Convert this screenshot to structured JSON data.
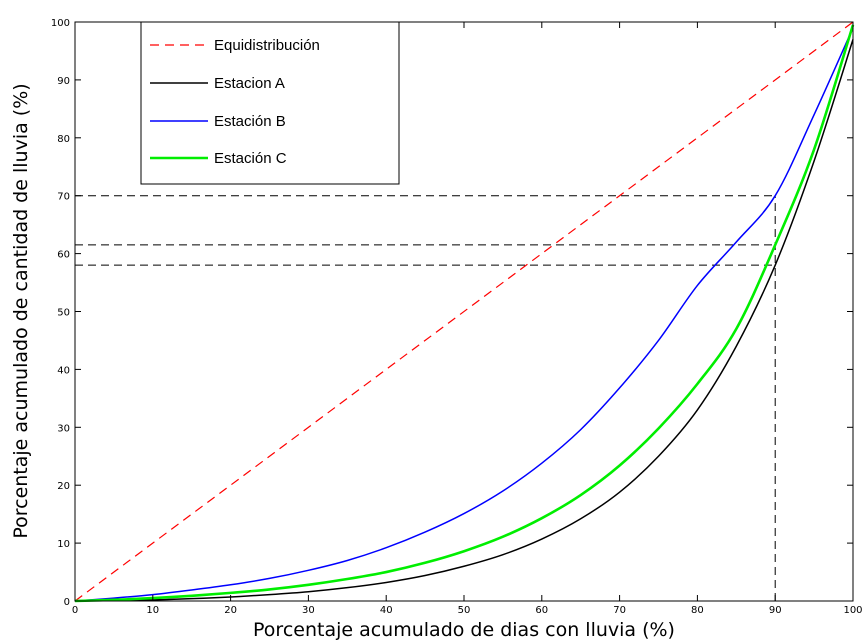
{
  "chart_data": {
    "type": "line",
    "title": "",
    "xlabel": "Porcentaje acumulado de dias con lluvia (%)",
    "ylabel": "Porcentaje acumulado de cantidad de lluvia (%)",
    "xlim": [
      0,
      100
    ],
    "ylim": [
      0,
      100
    ],
    "xticks": [
      0,
      10,
      20,
      30,
      40,
      50,
      60,
      70,
      80,
      90,
      100
    ],
    "yticks": [
      0,
      10,
      20,
      30,
      40,
      50,
      60,
      70,
      80,
      90,
      100
    ],
    "grid": false,
    "legend_position": "top-left",
    "x": [
      0,
      5,
      10,
      15,
      20,
      25,
      30,
      35,
      40,
      45,
      50,
      55,
      60,
      65,
      70,
      75,
      80,
      85,
      90,
      95,
      100
    ],
    "series": [
      {
        "name": "Equidistribución",
        "color": "#ff0000",
        "style": "dashed",
        "values": [
          0,
          5,
          10,
          15,
          20,
          25,
          30,
          35,
          40,
          45,
          50,
          55,
          60,
          65,
          70,
          75,
          80,
          85,
          90,
          95,
          100
        ]
      },
      {
        "name": "Estacion A",
        "color": "#000000",
        "style": "solid",
        "values": [
          0,
          0.1,
          0.2,
          0.4,
          0.7,
          1.1,
          1.6,
          2.3,
          3.2,
          4.4,
          6.0,
          8.0,
          10.7,
          14.2,
          18.8,
          25.0,
          33.0,
          44.0,
          58.0,
          76.0,
          97.0
        ]
      },
      {
        "name": "Estación B",
        "color": "#0000ff",
        "style": "solid",
        "values": [
          0,
          0.5,
          1.1,
          1.9,
          2.8,
          3.9,
          5.3,
          7.0,
          9.2,
          11.9,
          15.1,
          19.0,
          23.8,
          29.6,
          36.8,
          45.0,
          54.5,
          62.0,
          70.0,
          84.0,
          99.0
        ]
      },
      {
        "name": "Estación C",
        "color": "#00ee00",
        "style": "solid",
        "values": [
          0,
          0.2,
          0.5,
          0.9,
          1.4,
          2.0,
          2.8,
          3.8,
          5.0,
          6.6,
          8.6,
          11.1,
          14.3,
          18.3,
          23.4,
          29.8,
          37.5,
          47.0,
          61.5,
          78.0,
          99.5
        ]
      }
    ],
    "reference_lines": [
      {
        "orientation": "horizontal",
        "y": 70,
        "x_end": 90
      },
      {
        "orientation": "horizontal",
        "y": 61.5,
        "x_end": 90
      },
      {
        "orientation": "horizontal",
        "y": 58,
        "x_end": 90
      },
      {
        "orientation": "vertical",
        "x": 90,
        "y_end": 70
      }
    ]
  }
}
